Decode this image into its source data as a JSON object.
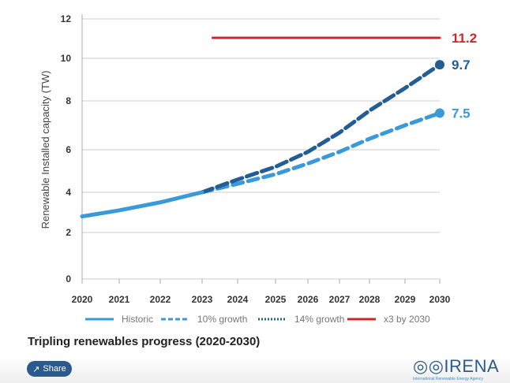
{
  "chart_data": {
    "type": "line",
    "title": "Tripling renewables progress (2020-2030)",
    "ylabel": "Renewable Installed capacity (TW)",
    "xlabel": "",
    "ylim": [
      0,
      12
    ],
    "y_ticks": [
      "0",
      "2",
      "4",
      "6",
      "8",
      "10",
      "12"
    ],
    "x_ticks": [
      "2020",
      "2021",
      "2022",
      "2023",
      "2024",
      "2025",
      "2026",
      "2027",
      "2028",
      "2029",
      "2030"
    ],
    "grid": true,
    "legend_position": "bottom",
    "series": [
      {
        "name": "Historic",
        "style": "solid",
        "color": "#3a9ad9",
        "x": [
          2020,
          2021,
          2022,
          2023
        ],
        "y": [
          2.8,
          3.1,
          3.5,
          4.0
        ]
      },
      {
        "name": "10% growth",
        "style": "dashed",
        "color": "#3a9ad9",
        "x": [
          2023,
          2024,
          2025,
          2026,
          2027,
          2028,
          2029,
          2030
        ],
        "y": [
          4.0,
          4.4,
          4.85,
          5.35,
          5.9,
          6.45,
          7.0,
          7.5
        ],
        "end_label": "7.5"
      },
      {
        "name": "14% growth",
        "style": "dotted",
        "color": "#225d96",
        "x": [
          2023,
          2024,
          2025,
          2026,
          2027,
          2028,
          2029,
          2030
        ],
        "y": [
          4.0,
          4.6,
          5.2,
          5.9,
          6.7,
          7.6,
          8.6,
          9.7
        ],
        "end_label": "9.7"
      },
      {
        "name": "x3 by 2030",
        "style": "solid",
        "color": "#c8282e",
        "x": [
          2023.3,
          2030
        ],
        "y": [
          11.2,
          11.2
        ],
        "end_label": "11.2"
      }
    ]
  },
  "share": {
    "label": "Share",
    "icon": "share-icon"
  },
  "logo": {
    "name": "IRENA",
    "subtitle": "International Renewable Energy Agency"
  }
}
